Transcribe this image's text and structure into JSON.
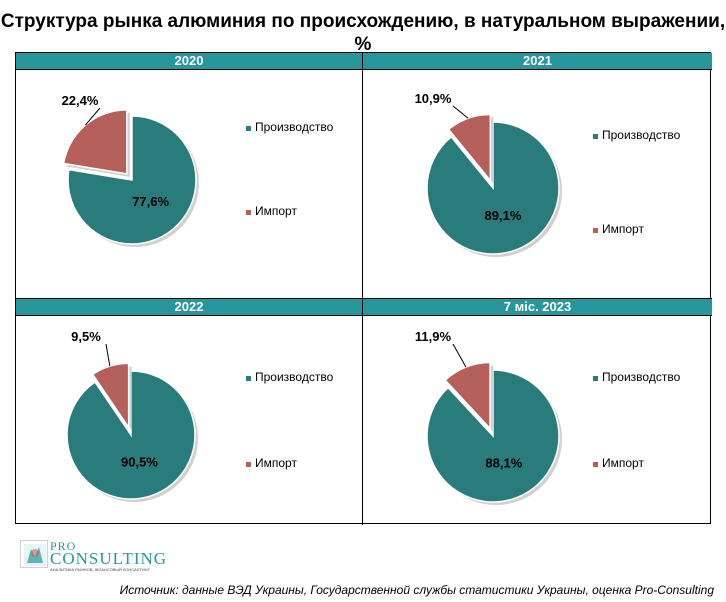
{
  "title": "Структура рынка алюминия по происхождению, в натуральном выражении, %",
  "colors": {
    "production": "#2a7b7c",
    "import": "#b5605a",
    "header_bg": "#27979c",
    "header_text": "#ffffff"
  },
  "legend": {
    "production": "Производство",
    "import": "Импорт"
  },
  "chart_data": [
    {
      "type": "pie",
      "title": "2020",
      "categories": [
        "Производство",
        "Импорт"
      ],
      "values": [
        77.6,
        22.4
      ],
      "labels": [
        "77,6%",
        "22,4%"
      ],
      "exploded": "Импорт",
      "legend_position": "right"
    },
    {
      "type": "pie",
      "title": "2021",
      "categories": [
        "Производство",
        "Импорт"
      ],
      "values": [
        89.1,
        10.9
      ],
      "labels": [
        "89,1%",
        "10,9%"
      ],
      "exploded": "Импорт",
      "legend_position": "right"
    },
    {
      "type": "pie",
      "title": "2022",
      "categories": [
        "Производство",
        "Импорт"
      ],
      "values": [
        90.5,
        9.5
      ],
      "labels": [
        "90,5%",
        "9,5%"
      ],
      "exploded": "Импорт",
      "legend_position": "right"
    },
    {
      "type": "pie",
      "title": "7 міс. 2023",
      "categories": [
        "Производство",
        "Импорт"
      ],
      "values": [
        88.1,
        11.9
      ],
      "labels": [
        "88,1%",
        "11,9%"
      ],
      "exploded": "Импорт",
      "legend_position": "right"
    }
  ],
  "logo": {
    "pro": "PRO",
    "main": "CONSULTING",
    "tagline": "АНАЛИТИКА РЫНКОВ, ЖОАНСОВЫЙ КОНСАЛТИНГ"
  },
  "source": "Источник: данные ВЭД Украины, Государственной службы статистики Украины, оценка Pro-Consulting"
}
